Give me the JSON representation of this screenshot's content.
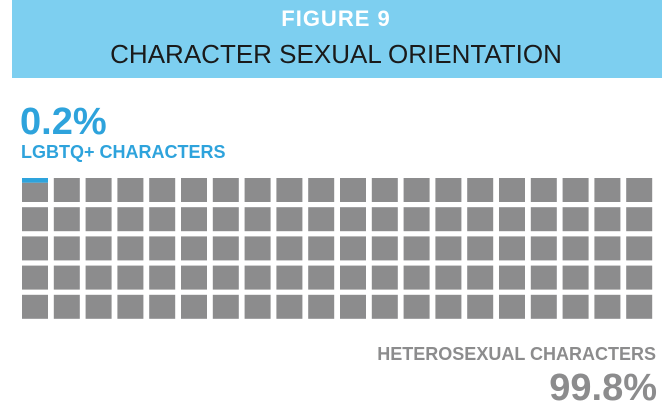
{
  "chart_data": {
    "type": "waffle",
    "figure": "FIGURE 9",
    "title": "CHARACTER SEXUAL ORIENTATION",
    "series": [
      {
        "name": "LGBTQ+ CHARACTERS",
        "color": "#2ea3dc",
        "value": 0.2,
        "value_label": "0.2%"
      },
      {
        "name": "HETEROSEXUAL CHARACTERS",
        "color": "#8c8c8d",
        "value": 99.8,
        "value_label": "99.8%"
      }
    ]
  }
}
